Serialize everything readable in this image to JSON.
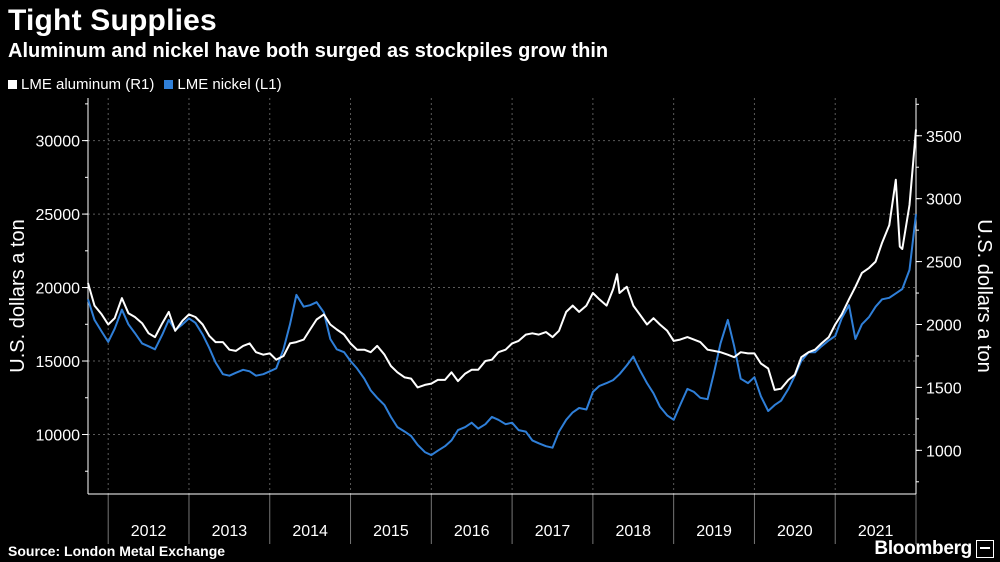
{
  "header": {
    "title": "Tight Supplies",
    "subtitle": "Aluminum and nickel have both surged as stockpiles grow thin"
  },
  "footer": {
    "source": "Source: London Metal Exchange",
    "brand": "Bloomberg"
  },
  "colors": {
    "background": "#000000",
    "aluminum": "#ffffff",
    "nickel": "#2f7fd8",
    "grid": "#5a5a5a"
  },
  "chart_data": {
    "type": "line",
    "legend_placement": "top-left",
    "grid": true,
    "xlabel": "",
    "x_ticks": [
      "2012",
      "2013",
      "2014",
      "2015",
      "2016",
      "2017",
      "2018",
      "2019",
      "2020",
      "2021"
    ],
    "xlim": [
      2011.75,
      2022.0
    ],
    "y_left": {
      "label": "U.S. dollars a ton",
      "ticks": [
        "10000",
        "15000",
        "20000",
        "25000",
        "30000"
      ],
      "range": [
        5950,
        32900
      ]
    },
    "y_right": {
      "label": "U.S. dollars a ton",
      "ticks": [
        "1000",
        "1500",
        "2000",
        "2500",
        "3000",
        "3500"
      ],
      "range": [
        653,
        3800
      ]
    },
    "series": [
      {
        "name": "LME aluminum (R1)",
        "axis": "right",
        "x": [
          2011.75,
          2011.83,
          2011.92,
          2012.0,
          2012.08,
          2012.17,
          2012.25,
          2012.33,
          2012.42,
          2012.5,
          2012.58,
          2012.67,
          2012.75,
          2012.83,
          2012.92,
          2013.0,
          2013.08,
          2013.17,
          2013.25,
          2013.33,
          2013.42,
          2013.5,
          2013.58,
          2013.67,
          2013.75,
          2013.83,
          2013.92,
          2014.0,
          2014.08,
          2014.17,
          2014.25,
          2014.33,
          2014.42,
          2014.5,
          2014.58,
          2014.67,
          2014.75,
          2014.83,
          2014.92,
          2015.0,
          2015.08,
          2015.17,
          2015.25,
          2015.33,
          2015.42,
          2015.5,
          2015.58,
          2015.67,
          2015.75,
          2015.83,
          2015.92,
          2016.0,
          2016.08,
          2016.17,
          2016.25,
          2016.33,
          2016.42,
          2016.5,
          2016.58,
          2016.67,
          2016.75,
          2016.83,
          2016.92,
          2017.0,
          2017.08,
          2017.17,
          2017.25,
          2017.33,
          2017.42,
          2017.5,
          2017.58,
          2017.67,
          2017.75,
          2017.83,
          2017.92,
          2018.0,
          2018.08,
          2018.17,
          2018.25,
          2018.3,
          2018.33,
          2018.42,
          2018.5,
          2018.58,
          2018.67,
          2018.75,
          2018.83,
          2018.92,
          2019.0,
          2019.08,
          2019.17,
          2019.25,
          2019.33,
          2019.42,
          2019.5,
          2019.58,
          2019.67,
          2019.75,
          2019.83,
          2019.92,
          2020.0,
          2020.08,
          2020.17,
          2020.25,
          2020.33,
          2020.42,
          2020.5,
          2020.58,
          2020.67,
          2020.75,
          2020.83,
          2020.92,
          2021.0,
          2021.08,
          2021.17,
          2021.25,
          2021.33,
          2021.42,
          2021.5,
          2021.58,
          2021.67,
          2021.75,
          2021.8,
          2021.83,
          2021.92,
          2022.0
        ],
        "values": [
          2330,
          2150,
          2080,
          2000,
          2050,
          2210,
          2090,
          2060,
          2010,
          1930,
          1900,
          2010,
          2100,
          1950,
          2030,
          2080,
          2060,
          2000,
          1910,
          1860,
          1860,
          1800,
          1790,
          1830,
          1850,
          1780,
          1760,
          1770,
          1720,
          1750,
          1850,
          1860,
          1880,
          1960,
          2040,
          2080,
          2000,
          1960,
          1920,
          1850,
          1800,
          1800,
          1780,
          1830,
          1760,
          1670,
          1620,
          1580,
          1570,
          1500,
          1520,
          1530,
          1560,
          1560,
          1620,
          1550,
          1610,
          1640,
          1640,
          1710,
          1720,
          1780,
          1800,
          1850,
          1870,
          1920,
          1930,
          1920,
          1940,
          1900,
          1950,
          2100,
          2150,
          2100,
          2150,
          2250,
          2200,
          2150,
          2280,
          2400,
          2250,
          2300,
          2150,
          2080,
          2000,
          2050,
          2000,
          1950,
          1870,
          1880,
          1900,
          1880,
          1860,
          1800,
          1790,
          1780,
          1760,
          1740,
          1780,
          1770,
          1770,
          1690,
          1650,
          1480,
          1490,
          1560,
          1600,
          1740,
          1780,
          1800,
          1850,
          1900,
          2000,
          2080,
          2200,
          2300,
          2410,
          2450,
          2500,
          2650,
          2790,
          3150,
          2620,
          2600,
          2950,
          3550
        ]
      },
      {
        "name": "LME nickel (L1)",
        "axis": "left",
        "x": [
          2011.75,
          2011.83,
          2011.92,
          2012.0,
          2012.08,
          2012.17,
          2012.25,
          2012.33,
          2012.42,
          2012.5,
          2012.58,
          2012.67,
          2012.75,
          2012.83,
          2012.92,
          2013.0,
          2013.08,
          2013.17,
          2013.25,
          2013.33,
          2013.42,
          2013.5,
          2013.58,
          2013.67,
          2013.75,
          2013.83,
          2013.92,
          2014.0,
          2014.08,
          2014.17,
          2014.25,
          2014.33,
          2014.42,
          2014.5,
          2014.58,
          2014.67,
          2014.75,
          2014.83,
          2014.92,
          2015.0,
          2015.08,
          2015.17,
          2015.25,
          2015.33,
          2015.42,
          2015.5,
          2015.58,
          2015.67,
          2015.75,
          2015.83,
          2015.92,
          2016.0,
          2016.08,
          2016.17,
          2016.25,
          2016.33,
          2016.42,
          2016.5,
          2016.58,
          2016.67,
          2016.75,
          2016.83,
          2016.92,
          2017.0,
          2017.08,
          2017.17,
          2017.25,
          2017.33,
          2017.42,
          2017.5,
          2017.58,
          2017.67,
          2017.75,
          2017.83,
          2017.92,
          2018.0,
          2018.08,
          2018.17,
          2018.25,
          2018.33,
          2018.42,
          2018.5,
          2018.58,
          2018.67,
          2018.75,
          2018.83,
          2018.92,
          2019.0,
          2019.08,
          2019.17,
          2019.25,
          2019.33,
          2019.42,
          2019.5,
          2019.58,
          2019.67,
          2019.75,
          2019.83,
          2019.92,
          2020.0,
          2020.08,
          2020.17,
          2020.25,
          2020.33,
          2020.42,
          2020.5,
          2020.58,
          2020.67,
          2020.75,
          2020.83,
          2020.92,
          2021.0,
          2021.08,
          2021.17,
          2021.25,
          2021.33,
          2021.42,
          2021.5,
          2021.58,
          2021.67,
          2021.75,
          2021.83,
          2021.92,
          2022.0
        ],
        "values": [
          19200,
          17800,
          17000,
          16300,
          17200,
          18500,
          17500,
          16900,
          16200,
          16000,
          15800,
          16800,
          17800,
          17100,
          17500,
          17900,
          17600,
          16800,
          15900,
          14900,
          14100,
          14000,
          14200,
          14400,
          14300,
          14000,
          14100,
          14300,
          14500,
          15800,
          17500,
          19500,
          18700,
          18800,
          19000,
          18300,
          16500,
          15800,
          15600,
          15000,
          14500,
          13800,
          13000,
          12500,
          12000,
          11200,
          10500,
          10200,
          9900,
          9300,
          8800,
          8600,
          8900,
          9200,
          9600,
          10300,
          10500,
          10800,
          10400,
          10700,
          11200,
          11000,
          10700,
          10800,
          10300,
          10200,
          9600,
          9400,
          9200,
          9100,
          10200,
          11000,
          11500,
          11800,
          11700,
          12900,
          13300,
          13500,
          13700,
          14100,
          14700,
          15300,
          14400,
          13500,
          12800,
          11900,
          11300,
          11000,
          12000,
          13100,
          12900,
          12500,
          12400,
          14200,
          16200,
          17800,
          16000,
          13800,
          13500,
          13900,
          12600,
          11600,
          12000,
          12300,
          13100,
          14000,
          15000,
          15600,
          15600,
          16000,
          16400,
          16700,
          17900,
          18800,
          16500,
          17500,
          18000,
          18700,
          19200,
          19300,
          19600,
          19900,
          21200,
          25000
        ]
      }
    ]
  }
}
